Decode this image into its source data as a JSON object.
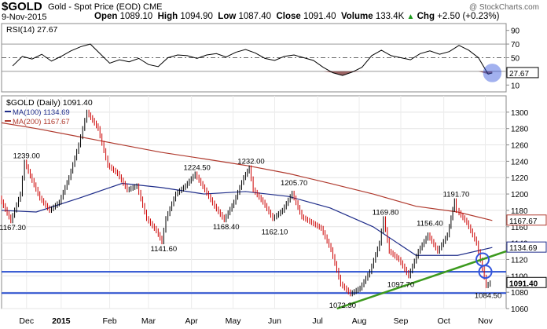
{
  "header": {
    "ticker": "$GOLD",
    "description": "Gold - Spot Price (EOD) CME",
    "watermark": "@ StockCharts.com",
    "date": "9-Nov-2015",
    "open_label": "Open",
    "open_value": "1089.10",
    "high_label": "High",
    "high_value": "1094.90",
    "low_label": "Low",
    "low_value": "1087.40",
    "close_label": "Close",
    "close_value": "1091.40",
    "volume_label": "Volume",
    "volume_value": "133.4K",
    "chg_label": "Chg",
    "chg_value": "+2.50 (+0.23%)",
    "chg_arrow": "▲"
  },
  "colors": {
    "price": "#000000",
    "down": "#cc0000",
    "ma100": "#1f2d8a",
    "ma200": "#b03a2e",
    "hline": "#2a4fd0",
    "trend": "#3c9a1e",
    "circle": "#3355dd",
    "rsi_fill": "#8b4a4a"
  },
  "chart_data": [
    {
      "type": "line",
      "title": "RSI(14) 27.67",
      "ylim": [
        0,
        100
      ],
      "yticks": [
        10,
        30,
        50,
        70,
        90
      ],
      "reference_lines": [
        30,
        50,
        70
      ],
      "last_label": "27.67",
      "x": [
        "2014-11-28",
        "2014-12-05",
        "2014-12-12",
        "2014-12-19",
        "2014-12-26",
        "2015-01-02",
        "2015-01-09",
        "2015-01-16",
        "2015-01-23",
        "2015-01-30",
        "2015-02-06",
        "2015-02-13",
        "2015-02-20",
        "2015-02-27",
        "2015-03-06",
        "2015-03-13",
        "2015-03-20",
        "2015-03-27",
        "2015-04-03",
        "2015-04-10",
        "2015-04-17",
        "2015-04-24",
        "2015-05-01",
        "2015-05-08",
        "2015-05-15",
        "2015-05-22",
        "2015-05-29",
        "2015-06-05",
        "2015-06-12",
        "2015-06-19",
        "2015-06-26",
        "2015-07-03",
        "2015-07-10",
        "2015-07-17",
        "2015-07-24",
        "2015-07-31",
        "2015-08-07",
        "2015-08-14",
        "2015-08-21",
        "2015-08-28",
        "2015-09-04",
        "2015-09-11",
        "2015-09-18",
        "2015-09-25",
        "2015-10-02",
        "2015-10-09",
        "2015-10-16",
        "2015-10-23",
        "2015-10-30",
        "2015-11-06",
        "2015-11-09"
      ],
      "values": [
        38,
        52,
        48,
        55,
        45,
        52,
        60,
        66,
        70,
        56,
        42,
        47,
        44,
        49,
        40,
        37,
        50,
        54,
        53,
        49,
        54,
        56,
        51,
        58,
        62,
        57,
        49,
        46,
        52,
        54,
        50,
        46,
        36,
        28,
        24,
        29,
        36,
        53,
        61,
        53,
        50,
        47,
        56,
        60,
        55,
        59,
        68,
        61,
        50,
        26,
        27.67
      ]
    },
    {
      "type": "line",
      "title": "$GOLD (Daily) 1091.40",
      "xlabel": "",
      "ylabel": "",
      "ylim": [
        1060,
        1320
      ],
      "yticks": [
        1060,
        1080,
        1100,
        1120,
        1140,
        1160,
        1180,
        1200,
        1220,
        1240,
        1260,
        1280,
        1300
      ],
      "month_labels": [
        {
          "x": "2014-12-08",
          "label": "Dec"
        },
        {
          "x": "2015-01-02",
          "label": "2015"
        },
        {
          "x": "2015-02-06",
          "label": "Feb"
        },
        {
          "x": "2015-03-06",
          "label": "Mar"
        },
        {
          "x": "2015-04-06",
          "label": "Apr"
        },
        {
          "x": "2015-05-06",
          "label": "May"
        },
        {
          "x": "2015-06-05",
          "label": "Jun"
        },
        {
          "x": "2015-07-06",
          "label": "Jul"
        },
        {
          "x": "2015-08-05",
          "label": "Aug"
        },
        {
          "x": "2015-09-04",
          "label": "Sep"
        },
        {
          "x": "2015-10-05",
          "label": "Oct"
        },
        {
          "x": "2015-11-04",
          "label": "Nov"
        }
      ],
      "xlim": [
        "2014-11-20",
        "2015-11-19"
      ],
      "series": [
        {
          "name": "$GOLD (Daily) 1091.40",
          "x": [
            "2014-11-20",
            "2014-11-28",
            "2014-12-05",
            "2014-12-08",
            "2014-12-12",
            "2014-12-19",
            "2014-12-26",
            "2015-01-02",
            "2015-01-09",
            "2015-01-16",
            "2015-01-22",
            "2015-01-30",
            "2015-02-06",
            "2015-02-13",
            "2015-02-20",
            "2015-02-27",
            "2015-03-06",
            "2015-03-13",
            "2015-03-17",
            "2015-03-20",
            "2015-03-27",
            "2015-04-03",
            "2015-04-10",
            "2015-04-17",
            "2015-04-24",
            "2015-05-01",
            "2015-05-08",
            "2015-05-15",
            "2015-05-19",
            "2015-05-22",
            "2015-05-29",
            "2015-06-05",
            "2015-06-12",
            "2015-06-19",
            "2015-06-26",
            "2015-07-03",
            "2015-07-10",
            "2015-07-17",
            "2015-07-24",
            "2015-07-31",
            "2015-08-07",
            "2015-08-14",
            "2015-08-21",
            "2015-08-24",
            "2015-08-28",
            "2015-09-04",
            "2015-09-11",
            "2015-09-18",
            "2015-09-25",
            "2015-10-02",
            "2015-10-09",
            "2015-10-14",
            "2015-10-16",
            "2015-10-23",
            "2015-10-30",
            "2015-11-06",
            "2015-11-09"
          ],
          "values": [
            1195,
            1167.3,
            1200,
            1239,
            1222,
            1195,
            1180,
            1190,
            1220,
            1260,
            1300,
            1280,
            1235,
            1225,
            1205,
            1210,
            1170,
            1155,
            1141.6,
            1170,
            1200,
            1210,
            1224.5,
            1205,
            1185,
            1168.4,
            1190,
            1220,
            1232,
            1205,
            1190,
            1170,
            1180,
            1201,
            1172,
            1165,
            1158,
            1132,
            1090,
            1078,
            1085,
            1105,
            1140,
            1169.8,
            1130,
            1120,
            1100,
            1130,
            1150,
            1130,
            1150,
            1191.7,
            1180,
            1165,
            1140,
            1088,
            1091.4
          ]
        },
        {
          "name": "MA(100) 1134.69",
          "last_label": "1134.69",
          "x": [
            "2014-11-20",
            "2014-12-15",
            "2015-01-15",
            "2015-02-15",
            "2015-03-15",
            "2015-04-15",
            "2015-05-15",
            "2015-06-15",
            "2015-07-15",
            "2015-08-15",
            "2015-09-15",
            "2015-10-15",
            "2015-11-09"
          ],
          "values": [
            1180,
            1178,
            1195,
            1213,
            1208,
            1200,
            1203,
            1197,
            1183,
            1160,
            1125,
            1125,
            1134.69
          ]
        },
        {
          "name": "MA(200) 1167.67",
          "last_label": "1167.67",
          "x": [
            "2014-11-20",
            "2014-12-15",
            "2015-01-15",
            "2015-02-15",
            "2015-03-15",
            "2015-04-15",
            "2015-05-15",
            "2015-06-15",
            "2015-07-15",
            "2015-08-15",
            "2015-09-15",
            "2015-10-15",
            "2015-11-09"
          ],
          "values": [
            1287,
            1280,
            1270,
            1260,
            1251,
            1243,
            1235,
            1225,
            1213,
            1200,
            1185,
            1178,
            1167.67
          ]
        }
      ],
      "support_lines": [
        1105,
        1079
      ],
      "trendline": {
        "x": [
          "2015-07-20",
          "2015-11-19"
        ],
        "values": [
          1060,
          1130
        ]
      },
      "close_label": "1091.40",
      "annotations": [
        {
          "x": "2014-12-08",
          "value": 1239,
          "label": "1239.00"
        },
        {
          "x": "2014-11-28",
          "value": 1167.3,
          "label": "1167.30"
        },
        {
          "x": "2015-03-17",
          "value": 1141.6,
          "label": "1141.60"
        },
        {
          "x": "2015-04-10",
          "value": 1224.5,
          "label": "1224.50"
        },
        {
          "x": "2015-05-01",
          "value": 1168.4,
          "label": "1168.40"
        },
        {
          "x": "2015-05-19",
          "value": 1232,
          "label": "1232.00"
        },
        {
          "x": "2015-06-05",
          "value": 1162.1,
          "label": "1162.10"
        },
        {
          "x": "2015-06-19",
          "value": 1205.7,
          "label": "1205.70"
        },
        {
          "x": "2015-07-24",
          "value": 1072.3,
          "label": "1072.30"
        },
        {
          "x": "2015-08-24",
          "value": 1169.8,
          "label": "1169.80"
        },
        {
          "x": "2015-09-04",
          "value": 1097.7,
          "label": "1097.70"
        },
        {
          "x": "2015-09-25",
          "value": 1156.4,
          "label": "1156.40"
        },
        {
          "x": "2015-10-14",
          "value": 1191.7,
          "label": "1191.70"
        },
        {
          "x": "2015-11-06",
          "value": 1084.5,
          "label": "1084.50"
        }
      ],
      "highlight_circles": [
        {
          "x": "2015-11-02",
          "value": 1120
        },
        {
          "x": "2015-11-04",
          "value": 1105
        }
      ]
    }
  ]
}
